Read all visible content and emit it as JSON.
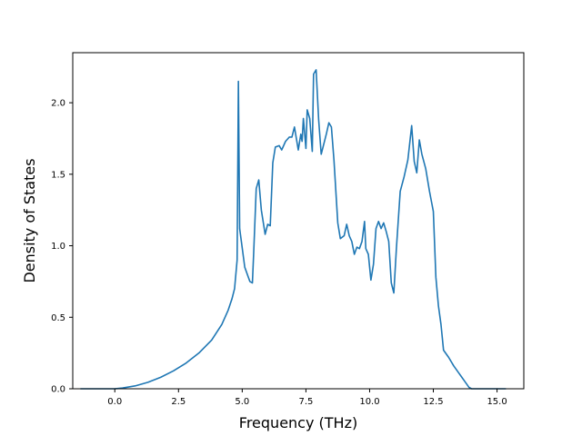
{
  "chart_data": {
    "type": "line",
    "title": "",
    "xlabel": "Frequency (THz)",
    "ylabel": "Density of States",
    "xlim": [
      -1.65,
      16.05
    ],
    "ylim": [
      0.0,
      2.35
    ],
    "grid": false,
    "legend": "none",
    "x_ticks": [
      0.0,
      2.5,
      5.0,
      7.5,
      10.0,
      12.5,
      15.0
    ],
    "x_tick_labels": [
      "0.0",
      "2.5",
      "5.0",
      "7.5",
      "10.0",
      "12.5",
      "15.0"
    ],
    "y_ticks": [
      0.0,
      0.5,
      1.0,
      1.5,
      2.0
    ],
    "y_tick_labels": [
      "0.0",
      "0.5",
      "1.0",
      "1.5",
      "2.0"
    ],
    "series": [
      {
        "color": "#1f77b4",
        "points": [
          [
            -1.35,
            0.0
          ],
          [
            0.0,
            0.0
          ],
          [
            0.3,
            0.005
          ],
          [
            0.8,
            0.02
          ],
          [
            1.3,
            0.045
          ],
          [
            1.8,
            0.08
          ],
          [
            2.3,
            0.125
          ],
          [
            2.8,
            0.18
          ],
          [
            3.3,
            0.25
          ],
          [
            3.8,
            0.34
          ],
          [
            4.2,
            0.45
          ],
          [
            4.45,
            0.55
          ],
          [
            4.6,
            0.63
          ],
          [
            4.7,
            0.7
          ],
          [
            4.8,
            0.9
          ],
          [
            4.85,
            2.15
          ],
          [
            4.9,
            1.12
          ],
          [
            5.1,
            0.85
          ],
          [
            5.3,
            0.75
          ],
          [
            5.4,
            0.74
          ],
          [
            5.45,
            0.95
          ],
          [
            5.55,
            1.4
          ],
          [
            5.65,
            1.46
          ],
          [
            5.75,
            1.25
          ],
          [
            5.9,
            1.08
          ],
          [
            6.0,
            1.15
          ],
          [
            6.1,
            1.14
          ],
          [
            6.2,
            1.58
          ],
          [
            6.3,
            1.69
          ],
          [
            6.45,
            1.7
          ],
          [
            6.55,
            1.67
          ],
          [
            6.7,
            1.73
          ],
          [
            6.85,
            1.76
          ],
          [
            6.95,
            1.76
          ],
          [
            7.05,
            1.83
          ],
          [
            7.2,
            1.67
          ],
          [
            7.3,
            1.78
          ],
          [
            7.35,
            1.73
          ],
          [
            7.4,
            1.89
          ],
          [
            7.5,
            1.68
          ],
          [
            7.55,
            1.95
          ],
          [
            7.65,
            1.89
          ],
          [
            7.75,
            1.66
          ],
          [
            7.8,
            2.2
          ],
          [
            7.9,
            2.23
          ],
          [
            8.0,
            1.88
          ],
          [
            8.1,
            1.64
          ],
          [
            8.3,
            1.78
          ],
          [
            8.4,
            1.86
          ],
          [
            8.5,
            1.83
          ],
          [
            8.6,
            1.6
          ],
          [
            8.75,
            1.16
          ],
          [
            8.85,
            1.05
          ],
          [
            9.0,
            1.07
          ],
          [
            9.1,
            1.15
          ],
          [
            9.2,
            1.07
          ],
          [
            9.3,
            1.03
          ],
          [
            9.4,
            0.94
          ],
          [
            9.5,
            0.99
          ],
          [
            9.6,
            0.98
          ],
          [
            9.7,
            1.03
          ],
          [
            9.8,
            1.17
          ],
          [
            9.85,
            0.98
          ],
          [
            9.95,
            0.94
          ],
          [
            10.05,
            0.76
          ],
          [
            10.15,
            0.87
          ],
          [
            10.25,
            1.12
          ],
          [
            10.35,
            1.17
          ],
          [
            10.45,
            1.12
          ],
          [
            10.55,
            1.16
          ],
          [
            10.65,
            1.1
          ],
          [
            10.75,
            1.03
          ],
          [
            10.85,
            0.74
          ],
          [
            10.95,
            0.67
          ],
          [
            11.05,
            0.98
          ],
          [
            11.2,
            1.38
          ],
          [
            11.35,
            1.48
          ],
          [
            11.5,
            1.6
          ],
          [
            11.65,
            1.84
          ],
          [
            11.75,
            1.59
          ],
          [
            11.85,
            1.51
          ],
          [
            11.95,
            1.74
          ],
          [
            12.05,
            1.64
          ],
          [
            12.2,
            1.54
          ],
          [
            12.35,
            1.38
          ],
          [
            12.5,
            1.24
          ],
          [
            12.6,
            0.78
          ],
          [
            12.7,
            0.58
          ],
          [
            12.8,
            0.45
          ],
          [
            12.9,
            0.27
          ],
          [
            13.1,
            0.22
          ],
          [
            13.3,
            0.16
          ],
          [
            13.5,
            0.11
          ],
          [
            13.7,
            0.06
          ],
          [
            13.9,
            0.01
          ],
          [
            14.0,
            0.0
          ],
          [
            15.35,
            0.0
          ]
        ]
      }
    ]
  }
}
